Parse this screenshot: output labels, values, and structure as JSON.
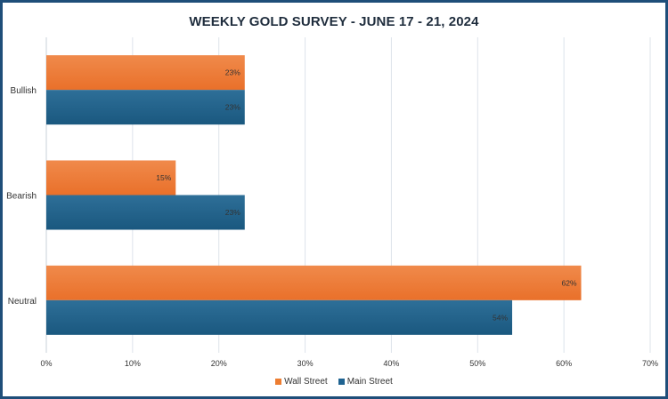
{
  "chart_data": {
    "type": "bar",
    "orientation": "horizontal",
    "title": "WEEKLY GOLD SURVEY - JUNE 17 - 21, 2024",
    "categories": [
      "Bullish",
      "Bearish",
      "Neutral"
    ],
    "series": [
      {
        "name": "Wall Street",
        "values": [
          23,
          15,
          62
        ],
        "labels": [
          "23%",
          "15%",
          "62%"
        ],
        "color": "#ed7d31"
      },
      {
        "name": "Main Street",
        "values": [
          23,
          23,
          54
        ],
        "labels": [
          "23%",
          "23%",
          "54%"
        ],
        "color": "#1f6391"
      }
    ],
    "xlim": [
      0,
      70
    ],
    "xticks": [
      "0%",
      "10%",
      "20%",
      "30%",
      "40%",
      "50%",
      "60%",
      "70%"
    ],
    "grid": "vertical",
    "legend": "bottom-center",
    "border_color": "#1f4e79"
  }
}
